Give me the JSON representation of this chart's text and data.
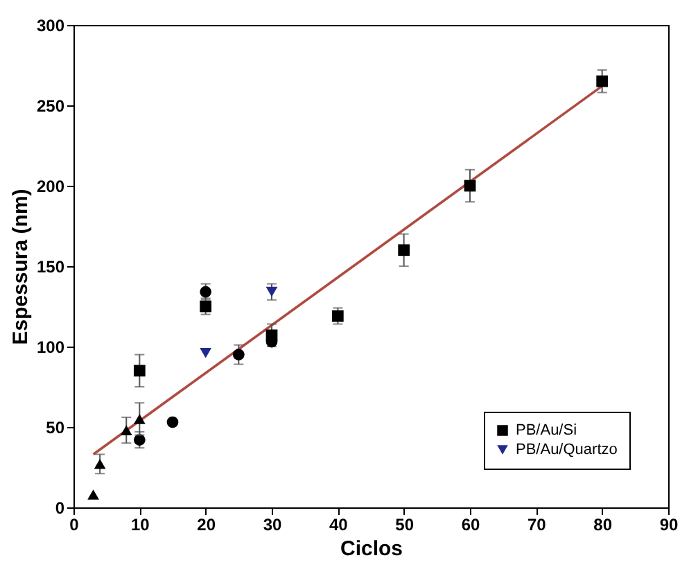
{
  "chart_data": {
    "type": "scatter",
    "xlabel": "Ciclos",
    "ylabel": "Espessura (nm)",
    "xlim": [
      0,
      90
    ],
    "xticks": [
      0,
      10,
      20,
      30,
      40,
      50,
      60,
      70,
      80,
      90
    ],
    "ylim": [
      0,
      300
    ],
    "yticks": [
      0,
      50,
      100,
      150,
      200,
      250,
      300
    ],
    "legend": "bottom right",
    "grid": false,
    "series": [
      {
        "name": "PB/Au/Si",
        "color": "#000000",
        "marker": "square",
        "x": [
          10,
          20,
          30,
          40,
          50,
          60,
          80
        ],
        "values": [
          85,
          125,
          107,
          119,
          160,
          200,
          265
        ],
        "errors": [
          10,
          5,
          7,
          5,
          10,
          10,
          7
        ]
      },
      {
        "name": "PB/Au/Quartzo",
        "color": "#1f2a8c",
        "marker": "triangle-down",
        "x": [
          20,
          30
        ],
        "values": [
          96,
          134
        ],
        "errors": [
          null,
          5
        ]
      },
      {
        "color": "#000000",
        "marker": "circle",
        "x": [
          10,
          15,
          20,
          25,
          30
        ],
        "values": [
          42,
          53,
          134,
          95,
          103
        ],
        "errors": [
          5,
          null,
          5,
          6,
          null
        ]
      },
      {
        "color": "#000000",
        "marker": "triangle",
        "x": [
          3,
          4,
          8,
          10
        ],
        "values": [
          8,
          27,
          48,
          55
        ],
        "errors": [
          null,
          6,
          8,
          10
        ]
      },
      {
        "type": "line",
        "color": "#b04a40",
        "x": [
          3,
          80
        ],
        "values": [
          33,
          262
        ]
      }
    ]
  }
}
